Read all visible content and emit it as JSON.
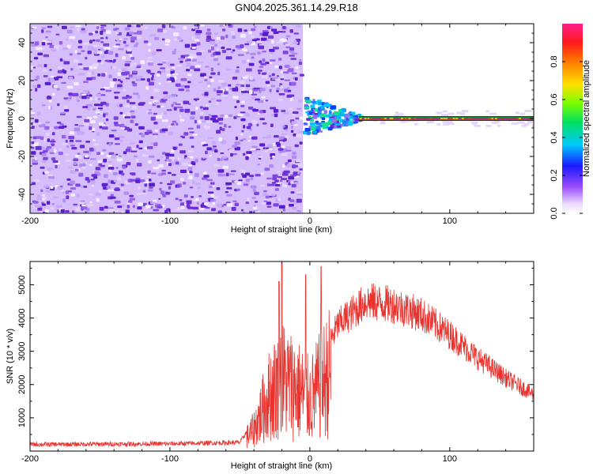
{
  "title": "GN04.2025.361.14.29.R18",
  "colors": {
    "snr_line": "#e8332e",
    "specgram_base": "#6a2bd6",
    "baseline": "#d90c6c",
    "axis": "#000000"
  },
  "chart_data": [
    {
      "type": "heatmap",
      "xlabel": "Height of straight line (km)",
      "ylabel": "Frequency (Hz)",
      "xlim": [
        -200,
        160
      ],
      "ylim": [
        -50,
        50
      ],
      "xticks": [
        "-200",
        "-100",
        "0",
        "100"
      ],
      "yticks": [
        "-40",
        "-20",
        "0",
        "20",
        "40"
      ],
      "grid": false,
      "description_regions": [
        {
          "x_range": [
            -200,
            -5
          ],
          "freq_range": [
            -50,
            50
          ],
          "amplitude": "low (0.1-0.2)",
          "pattern": "broadband noise"
        },
        {
          "x_range": [
            -5,
            35
          ],
          "freq_range": [
            -5,
            9
          ],
          "amplitude": "0.3-0.6",
          "pattern": "narrowing band near 0 Hz"
        },
        {
          "x_range": [
            35,
            160
          ],
          "freq_range": [
            -1,
            1
          ],
          "amplitude": "~1.0",
          "pattern": "narrow line at 0 Hz"
        }
      ],
      "colorbar": {
        "label": "Normalized spectral amplitude",
        "ticks": [
          "0.0",
          "0.2",
          "0.4",
          "0.6",
          "0.8"
        ],
        "range": [
          0,
          1
        ]
      }
    },
    {
      "type": "line",
      "xlabel": "Height of straight line (km)",
      "ylabel": "SNR (10 * v/v)",
      "xlim": [
        -200,
        160
      ],
      "ylim": [
        0,
        5700
      ],
      "xticks": [
        "-200",
        "-100",
        "0",
        "100"
      ],
      "yticks": [
        "1000",
        "2000",
        "3000",
        "4000",
        "5000"
      ],
      "grid": false,
      "series": [
        {
          "name": "SNR",
          "envelope_points": [
            {
              "x": -200,
              "y": 200
            },
            {
              "x": -100,
              "y": 220
            },
            {
              "x": -50,
              "y": 260
            },
            {
              "x": -40,
              "y": 900
            },
            {
              "x": -30,
              "y": 2200
            },
            {
              "x": -20,
              "y": 3000
            },
            {
              "x": -10,
              "y": 2600
            },
            {
              "x": 0,
              "y": 2100
            },
            {
              "x": 10,
              "y": 2900
            },
            {
              "x": 20,
              "y": 3800
            },
            {
              "x": 40,
              "y": 4500
            },
            {
              "x": 60,
              "y": 4400
            },
            {
              "x": 80,
              "y": 4100
            },
            {
              "x": 100,
              "y": 3500
            },
            {
              "x": 120,
              "y": 2800
            },
            {
              "x": 140,
              "y": 2200
            },
            {
              "x": 160,
              "y": 1700
            }
          ],
          "spikes": [
            {
              "x": -20,
              "y": 5650
            },
            {
              "x": -22,
              "y": 5100
            },
            {
              "x": -3,
              "y": 5300
            },
            {
              "x": 8,
              "y": 5550
            }
          ]
        }
      ]
    }
  ]
}
